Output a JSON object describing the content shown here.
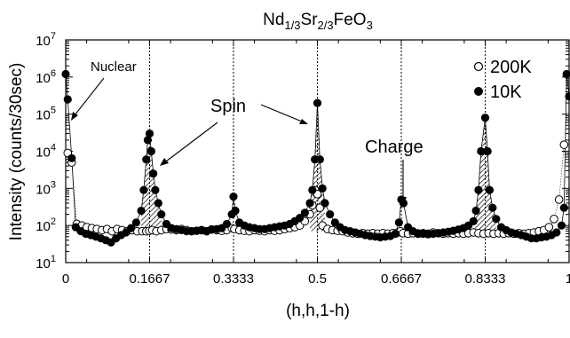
{
  "chart_data": {
    "type": "scatter",
    "title": {
      "main": "Nd",
      "sub1": "1/3",
      "mid": "Sr",
      "sub2": "2/3",
      "tail": "FeO",
      "sub3": "3"
    },
    "xlabel": "(h,h,1-h)",
    "ylabel": "Intensity (counts/30sec)",
    "xlim": [
      0,
      1
    ],
    "ylim": [
      10,
      10000000
    ],
    "y_scale": "log",
    "x_ticks": [
      {
        "value": 0,
        "label": "0"
      },
      {
        "value": 0.16667,
        "label": "0.1667"
      },
      {
        "value": 0.33333,
        "label": "0.3333"
      },
      {
        "value": 0.5,
        "label": "0.5"
      },
      {
        "value": 0.66667,
        "label": "0.6667"
      },
      {
        "value": 0.83333,
        "label": "0.8333"
      },
      {
        "value": 1,
        "label": "1"
      }
    ],
    "y_ticks": [
      {
        "value": 10,
        "base": "10",
        "exp": "1"
      },
      {
        "value": 100,
        "base": "10",
        "exp": "2"
      },
      {
        "value": 1000,
        "base": "10",
        "exp": "3"
      },
      {
        "value": 10000,
        "base": "10",
        "exp": "4"
      },
      {
        "value": 100000,
        "base": "10",
        "exp": "5"
      },
      {
        "value": 1000000,
        "base": "10",
        "exp": "6"
      },
      {
        "value": 10000000,
        "base": "10",
        "exp": "7"
      }
    ],
    "vlines": [
      0.16667,
      0.33333,
      0.5,
      0.66667,
      0.83333
    ],
    "legend": {
      "position": "top-right",
      "entries": [
        "200K",
        "10K"
      ]
    },
    "annotations": [
      "Nuclear",
      "Spin",
      "Charge"
    ],
    "series": [
      {
        "name": "200K",
        "marker": "open-circle",
        "x": [
          0.004,
          0.012,
          0.022,
          0.032,
          0.042,
          0.052,
          0.062,
          0.072,
          0.082,
          0.092,
          0.102,
          0.112,
          0.122,
          0.132,
          0.142,
          0.152,
          0.16,
          0.166,
          0.172,
          0.18,
          0.19,
          0.2,
          0.21,
          0.22,
          0.23,
          0.24,
          0.25,
          0.26,
          0.27,
          0.28,
          0.29,
          0.3,
          0.31,
          0.32,
          0.33,
          0.335,
          0.345,
          0.355,
          0.365,
          0.375,
          0.385,
          0.395,
          0.405,
          0.415,
          0.425,
          0.435,
          0.445,
          0.455,
          0.465,
          0.475,
          0.485,
          0.49,
          0.495,
          0.5,
          0.505,
          0.51,
          0.52,
          0.53,
          0.54,
          0.55,
          0.56,
          0.57,
          0.58,
          0.59,
          0.6,
          0.61,
          0.62,
          0.63,
          0.64,
          0.65,
          0.66,
          0.665,
          0.67,
          0.68,
          0.69,
          0.7,
          0.71,
          0.72,
          0.73,
          0.74,
          0.75,
          0.76,
          0.77,
          0.78,
          0.79,
          0.8,
          0.81,
          0.82,
          0.83,
          0.84,
          0.85,
          0.86,
          0.87,
          0.88,
          0.89,
          0.9,
          0.91,
          0.92,
          0.93,
          0.94,
          0.95,
          0.96,
          0.97,
          0.98,
          0.99
        ],
        "y": [
          9000,
          5000,
          110,
          100,
          90,
          85,
          80,
          75,
          80,
          70,
          80,
          75,
          70,
          75,
          70,
          70,
          70,
          72,
          75,
          70,
          75,
          80,
          78,
          75,
          80,
          75,
          70,
          72,
          75,
          70,
          78,
          75,
          72,
          75,
          85,
          80,
          75,
          72,
          70,
          75,
          72,
          70,
          75,
          72,
          75,
          80,
          85,
          90,
          100,
          130,
          200,
          350,
          900,
          700,
          300,
          100,
          80,
          75,
          72,
          70,
          65,
          62,
          60,
          62,
          60,
          62,
          60,
          62,
          60,
          62,
          65,
          70,
          62,
          60,
          62,
          60,
          62,
          60,
          65,
          62,
          60,
          62,
          60,
          62,
          60,
          62,
          65,
          62,
          60,
          62,
          60,
          62,
          60,
          62,
          60,
          62,
          60,
          62,
          65,
          70,
          75,
          90,
          150,
          500,
          15000
        ]
      },
      {
        "name": "10K",
        "marker": "filled-circle",
        "x": [
          0.0,
          0.004,
          0.012,
          0.02,
          0.03,
          0.04,
          0.05,
          0.06,
          0.07,
          0.08,
          0.09,
          0.1,
          0.11,
          0.12,
          0.13,
          0.14,
          0.15,
          0.155,
          0.16,
          0.163,
          0.1667,
          0.17,
          0.174,
          0.178,
          0.184,
          0.19,
          0.2,
          0.21,
          0.22,
          0.23,
          0.24,
          0.25,
          0.26,
          0.27,
          0.28,
          0.29,
          0.3,
          0.31,
          0.32,
          0.33,
          0.3333,
          0.337,
          0.345,
          0.355,
          0.365,
          0.375,
          0.385,
          0.395,
          0.405,
          0.415,
          0.425,
          0.435,
          0.445,
          0.455,
          0.465,
          0.475,
          0.485,
          0.49,
          0.495,
          0.5,
          0.505,
          0.51,
          0.515,
          0.525,
          0.535,
          0.545,
          0.555,
          0.565,
          0.575,
          0.585,
          0.595,
          0.605,
          0.615,
          0.625,
          0.635,
          0.645,
          0.655,
          0.662,
          0.6667,
          0.671,
          0.68,
          0.69,
          0.7,
          0.71,
          0.72,
          0.73,
          0.74,
          0.75,
          0.76,
          0.77,
          0.78,
          0.79,
          0.8,
          0.81,
          0.815,
          0.82,
          0.825,
          0.8333,
          0.838,
          0.842,
          0.848,
          0.855,
          0.865,
          0.875,
          0.885,
          0.895,
          0.905,
          0.915,
          0.925,
          0.935,
          0.945,
          0.955,
          0.965,
          0.975,
          0.985,
          0.99,
          0.995,
          1.0
        ],
        "y": [
          1200000,
          250000,
          6500,
          90,
          70,
          60,
          55,
          50,
          45,
          40,
          35,
          45,
          55,
          65,
          85,
          120,
          250,
          900,
          6000,
          20000,
          30000,
          10000,
          2500,
          900,
          400,
          200,
          110,
          85,
          80,
          75,
          70,
          70,
          72,
          75,
          70,
          78,
          80,
          85,
          110,
          200,
          600,
          250,
          120,
          100,
          90,
          85,
          80,
          80,
          85,
          90,
          95,
          100,
          110,
          130,
          160,
          220,
          400,
          900,
          6000,
          200000,
          6000,
          1000,
          400,
          200,
          120,
          90,
          75,
          70,
          65,
          60,
          55,
          52,
          50,
          48,
          50,
          52,
          60,
          120,
          500,
          400,
          90,
          70,
          62,
          60,
          58,
          60,
          62,
          65,
          68,
          72,
          78,
          85,
          100,
          130,
          250,
          900,
          10000,
          80000,
          10000,
          900,
          300,
          150,
          90,
          75,
          65,
          60,
          55,
          50,
          45,
          45,
          48,
          50,
          55,
          65,
          100,
          300,
          1200000,
          300000
        ]
      }
    ]
  }
}
